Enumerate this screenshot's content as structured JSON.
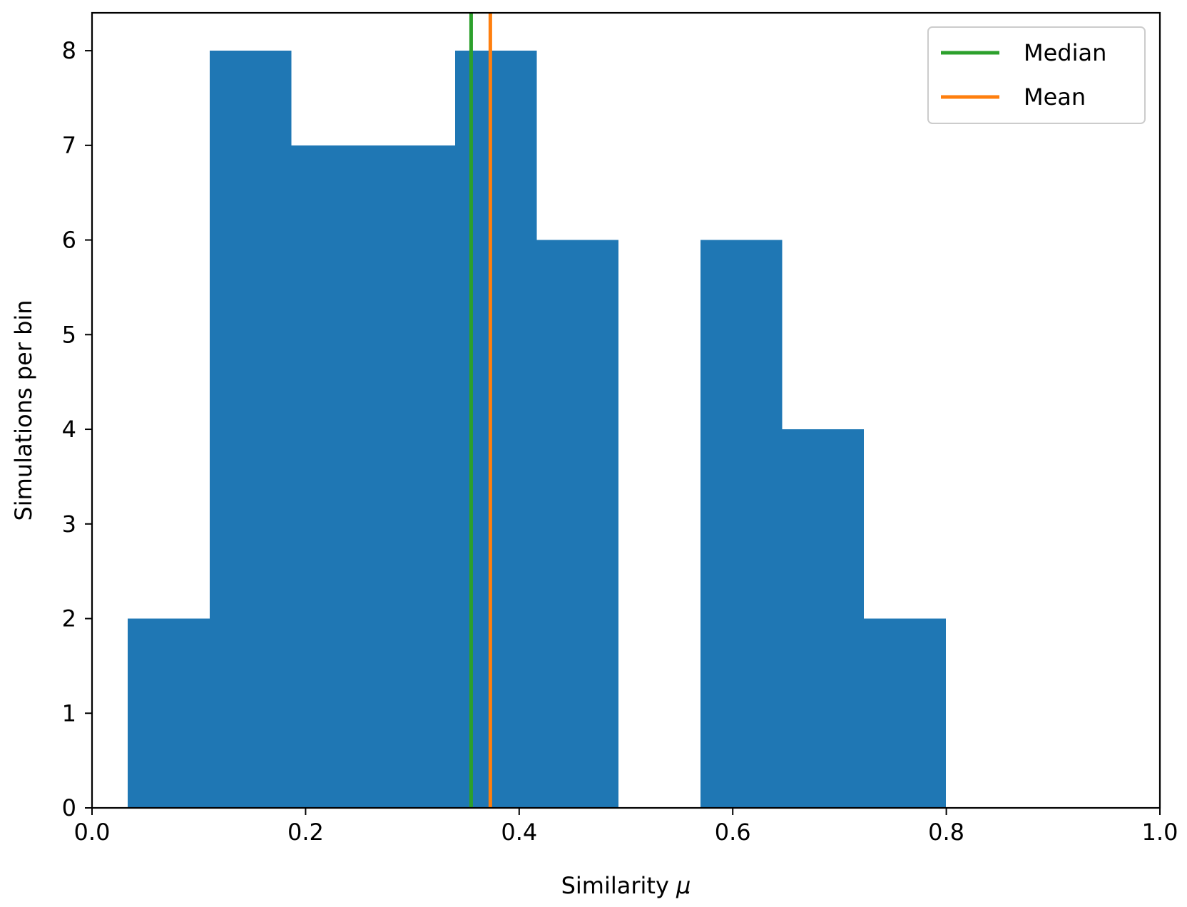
{
  "chart_data": {
    "type": "bar",
    "subtype": "histogram",
    "bins": [
      {
        "x0": 0.0335,
        "x1": 0.1101,
        "count": 2
      },
      {
        "x0": 0.1101,
        "x1": 0.1867,
        "count": 8
      },
      {
        "x0": 0.1867,
        "x1": 0.2633,
        "count": 7
      },
      {
        "x0": 0.2633,
        "x1": 0.3399,
        "count": 7
      },
      {
        "x0": 0.3399,
        "x1": 0.4165,
        "count": 8
      },
      {
        "x0": 0.4165,
        "x1": 0.4931,
        "count": 6
      },
      {
        "x0": 0.4931,
        "x1": 0.5697,
        "count": 0
      },
      {
        "x0": 0.5697,
        "x1": 0.6463,
        "count": 6
      },
      {
        "x0": 0.6463,
        "x1": 0.7229,
        "count": 4
      },
      {
        "x0": 0.7229,
        "x1": 0.7995,
        "count": 2
      }
    ],
    "bar_color": "#1f77b4",
    "median": 0.355,
    "mean": 0.373,
    "median_color": "#2ca02c",
    "mean_color": "#ff7f0e",
    "xlabel_text": "Similarity ",
    "xlabel_symbol": "μ",
    "ylabel": "Simulations per bin",
    "xlim": [
      0.0,
      1.0
    ],
    "ylim": [
      0,
      8.4
    ],
    "xticks": [
      "0.0",
      "0.2",
      "0.4",
      "0.6",
      "0.8",
      "1.0"
    ],
    "yticks": [
      "0",
      "1",
      "2",
      "3",
      "4",
      "5",
      "6",
      "7",
      "8"
    ],
    "legend": {
      "placement": "top-right",
      "entries": [
        {
          "label": "Median",
          "color": "#2ca02c"
        },
        {
          "label": "Mean",
          "color": "#ff7f0e"
        }
      ]
    },
    "grid": false
  }
}
